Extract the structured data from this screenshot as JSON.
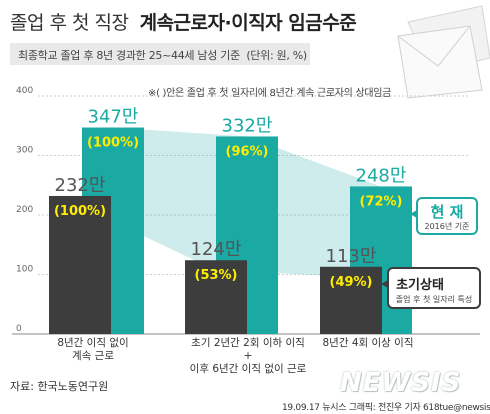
{
  "title": {
    "part1": "졸업 후 첫 직장",
    "part2": "계속근로자·이직자 임금수준"
  },
  "subtitle": "최종학교 졸업 후 8년 경과한 25~44세 남성 기준",
  "unit": "(단위: 원, %)",
  "note": "※( )안은 졸업 후 첫 일자리에 8년간 계속 근로자의 상대임금",
  "source": "자료: 한국노동연구원",
  "credit": "19.09.17  뉴시스 그래픽: 전진우 기자  618tue@newsis.com",
  "logo": "NEWSIS",
  "colors": {
    "current": "#1aa9a3",
    "initial": "#3d3d3d",
    "band": "#1aa9a3",
    "label_current": "#ffee00"
  },
  "chart_data": {
    "type": "bar",
    "categories": [
      [
        "8년간 이직 없이",
        "계속 근로"
      ],
      [
        "초기 2년간 2회 이하 이직",
        "+",
        "이후 6년간 이직 없이 근로"
      ],
      [
        "8년간 4회 이상 이직"
      ]
    ],
    "ylim": [
      0,
      400
    ],
    "yticks": [
      0,
      100,
      200,
      300,
      400
    ],
    "grid": true,
    "series": [
      {
        "name": "현 재",
        "name_sub": "2016년 기준",
        "values": [
          347,
          332,
          248
        ],
        "value_labels": [
          "347만",
          "332만",
          "248만"
        ],
        "pct_labels": [
          "(100%)",
          "(96%)",
          "(72%)"
        ]
      },
      {
        "name": "초기상태",
        "name_sub": "졸업 후 첫 일자리 특성",
        "values": [
          232,
          124,
          113
        ],
        "value_labels": [
          "232만",
          "124만",
          "113만"
        ],
        "pct_labels": [
          "(100%)",
          "(53%)",
          "(49%)"
        ]
      }
    ]
  }
}
